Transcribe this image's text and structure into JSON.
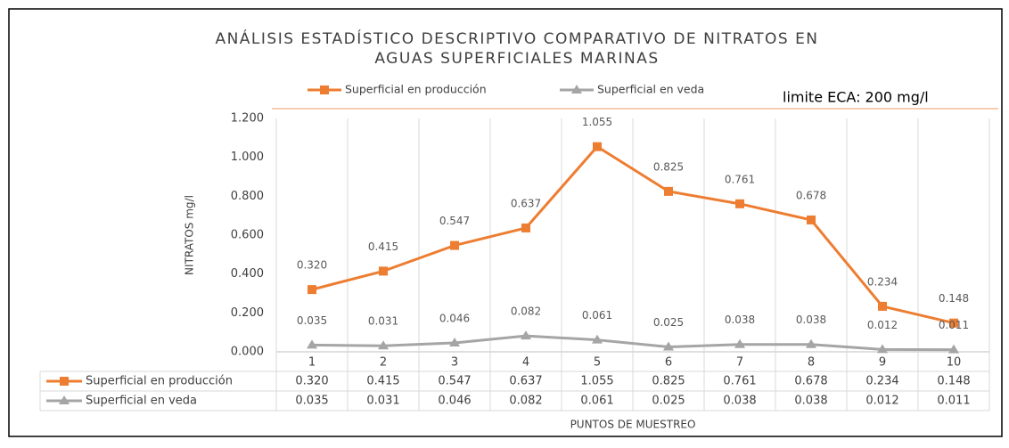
{
  "chart_data": {
    "type": "line",
    "title": [
      "ANÁLISIS ESTADÍSTICO DESCRIPTIVO COMPARATIVO DE NITRATOS  EN",
      "AGUAS SUPERFICIALES MARINAS"
    ],
    "annotation": "limite ECA: 200 mg/l",
    "y_label": "NITRATOS mg/l",
    "x_label": "PUNTOS DE MUESTREO",
    "categories": [
      "1",
      "2",
      "3",
      "4",
      "5",
      "6",
      "7",
      "8",
      "9",
      "10"
    ],
    "series": [
      {
        "name": "Superficial  en producción",
        "color": "#ED7D31",
        "marker": "square",
        "values": [
          0.32,
          0.415,
          0.547,
          0.637,
          1.055,
          0.825,
          0.761,
          0.678,
          0.234,
          0.148
        ],
        "value_labels": [
          "0.320",
          "0.415",
          "0.547",
          "0.637",
          "1.055",
          "0.825",
          "0.761",
          "0.678",
          "0.234",
          "0.148"
        ]
      },
      {
        "name": "Superficial  en veda",
        "color": "#A5A5A5",
        "marker": "triangle",
        "values": [
          0.035,
          0.031,
          0.046,
          0.082,
          0.061,
          0.025,
          0.038,
          0.038,
          0.012,
          0.011
        ],
        "value_labels": [
          "0.035",
          "0.031",
          "0.046",
          "0.082",
          "0.061",
          "0.025",
          "0.038",
          "0.038",
          "0.012",
          "0.011"
        ]
      }
    ],
    "ylim": [
      0,
      1.2
    ],
    "yticks": [
      {
        "value": 0,
        "label": "0.000"
      },
      {
        "value": 0.2,
        "label": "0.200"
      },
      {
        "value": 0.4,
        "label": "0.400"
      },
      {
        "value": 0.6,
        "label": "0.600"
      },
      {
        "value": 0.8,
        "label": "0.800"
      },
      {
        "value": 1.0,
        "label": "1.000"
      },
      {
        "value": 1.2,
        "label": "1.200"
      }
    ],
    "grid": true,
    "legend": "top",
    "data_table": true
  }
}
